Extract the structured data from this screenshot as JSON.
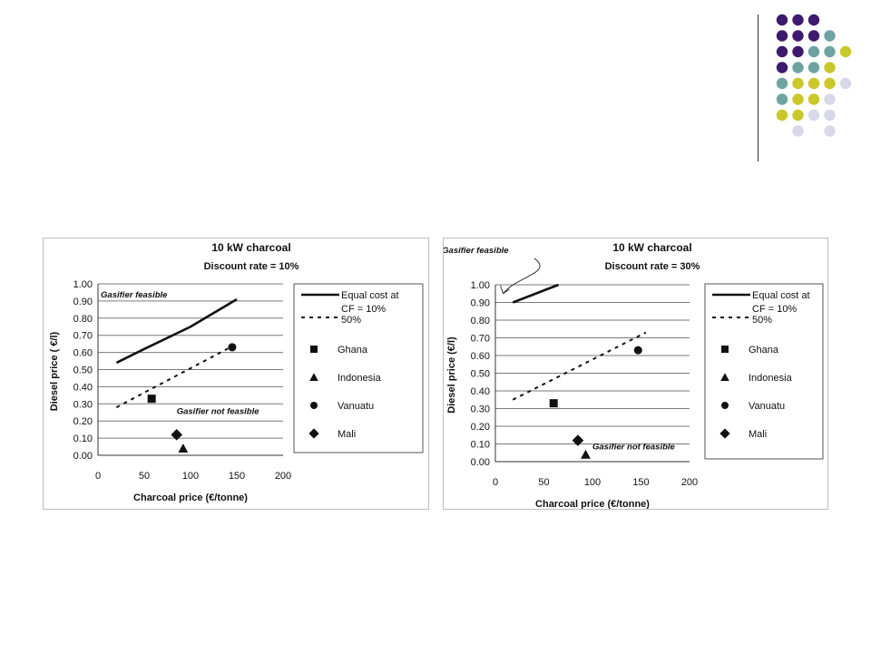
{
  "decor": {
    "dot_colors": [
      "#3d1a6e",
      "#6fa3a0",
      "#c8c82a",
      "#d8d8ea"
    ],
    "dot_pattern": [
      [
        0,
        0,
        0,
        -1,
        -1
      ],
      [
        0,
        0,
        0,
        1,
        -1
      ],
      [
        0,
        0,
        1,
        1,
        2
      ],
      [
        0,
        1,
        1,
        2,
        -1
      ],
      [
        1,
        2,
        2,
        2,
        3
      ],
      [
        1,
        2,
        2,
        3,
        -1
      ],
      [
        2,
        2,
        3,
        3,
        -1
      ],
      [
        -1,
        3,
        -1,
        3,
        -1
      ]
    ]
  },
  "chart_data": [
    {
      "type": "line",
      "title": "10 kW charcoal",
      "subtitle": "Discount rate = 10%",
      "xlabel": "Charcoal price (€/tonne)",
      "ylabel": "Diesel price ( €/l)",
      "xlim": [
        0,
        200
      ],
      "ylim": [
        0,
        1
      ],
      "xticks": [
        "0",
        "50",
        "100",
        "150",
        "200"
      ],
      "yticks": [
        "0.00",
        "0.10",
        "0.20",
        "0.30",
        "0.40",
        "0.50",
        "0.60",
        "0.70",
        "0.80",
        "0.90",
        "1.00"
      ],
      "grid": "horizontal",
      "series": [
        {
          "name": "Equal cost at CF = 10%",
          "style": "solid",
          "x": [
            20,
            50,
            100,
            150
          ],
          "y": [
            0.54,
            0.62,
            0.75,
            0.91
          ]
        },
        {
          "name": "50%",
          "style": "dotted",
          "x": [
            20,
            150
          ],
          "y": [
            0.28,
            0.65
          ]
        }
      ],
      "points": [
        {
          "name": "Ghana",
          "marker": "square",
          "x": 58,
          "y": 0.33
        },
        {
          "name": "Indonesia",
          "marker": "triangle",
          "x": 92,
          "y": 0.04
        },
        {
          "name": "Vanuatu",
          "marker": "circle",
          "x": 145,
          "y": 0.63
        },
        {
          "name": "Mali",
          "marker": "diamond",
          "x": 85,
          "y": 0.12
        }
      ],
      "annotations": [
        {
          "text": "Gasifier feasible",
          "x": 3,
          "y": 0.92
        },
        {
          "text": "Gasifier not feasible",
          "x": 85,
          "y": 0.24
        }
      ],
      "legend_position": "right"
    },
    {
      "type": "line",
      "title": "10 kW charcoal",
      "subtitle": "Discount rate = 30%",
      "xlabel": "Charcoal price (€/tonne)",
      "ylabel": "Diesel price (€/l)",
      "xlim": [
        0,
        200
      ],
      "ylim": [
        0,
        1
      ],
      "xticks": [
        "0",
        "50",
        "100",
        "150",
        "200"
      ],
      "yticks": [
        "0.00",
        "0.10",
        "0.20",
        "0.30",
        "0.40",
        "0.50",
        "0.60",
        "0.70",
        "0.80",
        "0.90",
        "1.00"
      ],
      "grid": "horizontal",
      "series": [
        {
          "name": "Equal cost at CF = 10%",
          "style": "solid",
          "x": [
            18,
            65
          ],
          "y": [
            0.9,
            1.0
          ]
        },
        {
          "name": "50%",
          "style": "dotted",
          "x": [
            18,
            155
          ],
          "y": [
            0.35,
            0.73
          ]
        }
      ],
      "points": [
        {
          "name": "Ghana",
          "marker": "square",
          "x": 60,
          "y": 0.33
        },
        {
          "name": "Indonesia",
          "marker": "triangle",
          "x": 93,
          "y": 0.04
        },
        {
          "name": "Vanuatu",
          "marker": "circle",
          "x": 147,
          "y": 0.63
        },
        {
          "name": "Mali",
          "marker": "diamond",
          "x": 85,
          "y": 0.12
        }
      ],
      "annotations": [
        {
          "text": "Gasifier feasible",
          "x": -55,
          "y": 1.18
        },
        {
          "text": "Gasifier not feasible",
          "x": 100,
          "y": 0.07
        }
      ],
      "legend_position": "right"
    }
  ]
}
